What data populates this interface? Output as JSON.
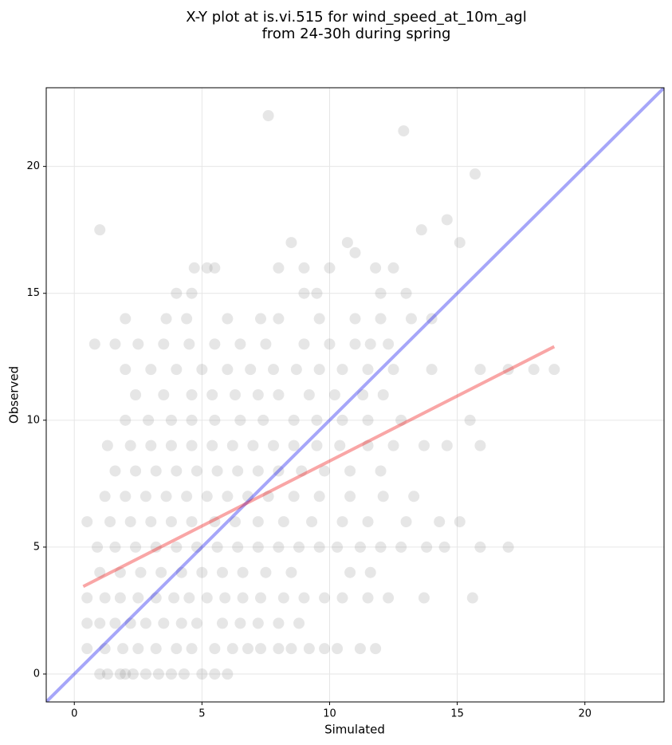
{
  "chart_data": {
    "type": "scatter",
    "title": "X-Y plot at is.vi.515 for wind_speed_at_10m_agl",
    "subtitle": "from 24-30h during spring",
    "xlabel": "Simulated",
    "ylabel": "Observed",
    "xlim": [
      -1.1,
      23.1
    ],
    "ylim": [
      -1.1,
      23.1
    ],
    "xticks": [
      0,
      5,
      10,
      15,
      20
    ],
    "yticks": [
      0,
      5,
      10,
      15,
      20
    ],
    "grid": true,
    "color": "#808080",
    "x": [
      1.0,
      1.3,
      1.8,
      2.0,
      2.3,
      2.8,
      3.3,
      3.8,
      4.3,
      5.0,
      5.5,
      6.0,
      0.5,
      1.2,
      1.9,
      2.5,
      3.2,
      4.0,
      4.6,
      5.5,
      6.2,
      6.8,
      7.3,
      8.0,
      8.5,
      9.2,
      9.8,
      10.3,
      11.2,
      11.8,
      0.5,
      1.0,
      1.6,
      2.2,
      2.8,
      3.5,
      4.2,
      4.8,
      5.8,
      6.5,
      7.2,
      8.0,
      8.8,
      0.5,
      1.2,
      1.8,
      2.5,
      3.2,
      3.9,
      4.5,
      5.2,
      5.9,
      6.6,
      7.3,
      8.2,
      9.0,
      9.8,
      10.5,
      11.5,
      12.3,
      13.7,
      15.6,
      1.0,
      1.8,
      2.6,
      3.4,
      4.2,
      5.0,
      5.8,
      6.6,
      7.5,
      8.5,
      10.8,
      11.6,
      0.9,
      1.6,
      2.4,
      3.2,
      4.0,
      4.8,
      5.6,
      6.4,
      7.2,
      8.0,
      8.8,
      9.6,
      10.3,
      11.2,
      12.0,
      12.8,
      13.8,
      14.5,
      15.9,
      17.0,
      0.5,
      1.4,
      2.2,
      3.0,
      3.8,
      4.6,
      5.5,
      6.3,
      7.2,
      8.2,
      9.3,
      10.5,
      11.5,
      13.0,
      14.3,
      15.1,
      1.2,
      2.0,
      2.8,
      3.6,
      4.4,
      5.2,
      6.0,
      6.8,
      7.6,
      8.6,
      9.6,
      10.8,
      12.1,
      13.3,
      1.6,
      2.4,
      3.2,
      4.0,
      4.8,
      5.6,
      6.4,
      7.2,
      8.0,
      8.9,
      9.8,
      10.8,
      12.0,
      1.3,
      2.2,
      3.0,
      3.8,
      4.6,
      5.4,
      6.2,
      7.0,
      7.8,
      8.6,
      9.5,
      10.4,
      11.5,
      12.5,
      13.7,
      14.6,
      15.9,
      2.0,
      2.9,
      3.8,
      4.6,
      5.5,
      6.5,
      7.4,
      8.6,
      9.5,
      10.5,
      11.5,
      12.8,
      15.5,
      2.4,
      3.5,
      4.6,
      5.4,
      6.3,
      7.2,
      8.0,
      9.2,
      10.2,
      11.3,
      12.1,
      2.0,
      3.0,
      4.0,
      5.0,
      6.0,
      6.9,
      7.8,
      8.7,
      9.6,
      10.5,
      11.5,
      12.5,
      14.0,
      15.9,
      17.0,
      18.0,
      18.8,
      0.8,
      1.6,
      2.5,
      3.5,
      4.5,
      5.5,
      6.5,
      7.5,
      9.0,
      10.0,
      11.0,
      11.6,
      12.3,
      2.0,
      3.6,
      4.4,
      6.0,
      7.3,
      8.0,
      9.6,
      11.0,
      12.0,
      13.2,
      14.0,
      4.0,
      4.6,
      9.0,
      9.5,
      12.0,
      13.0,
      4.7,
      5.2,
      5.5,
      8.0,
      9.0,
      10.0,
      11.8,
      12.5,
      1.0,
      7.6,
      12.9,
      15.7,
      14.6,
      13.6,
      10.7,
      8.5,
      15.1,
      11.0
    ],
    "y": [
      0,
      0,
      0,
      0,
      0,
      0,
      0,
      0,
      0,
      0,
      0,
      0,
      1,
      1,
      1,
      1,
      1,
      1,
      1,
      1,
      1,
      1,
      1,
      1,
      1,
      1,
      1,
      1,
      1,
      1,
      2,
      2,
      2,
      2,
      2,
      2,
      2,
      2,
      2,
      2,
      2,
      2,
      2,
      3,
      3,
      3,
      3,
      3,
      3,
      3,
      3,
      3,
      3,
      3,
      3,
      3,
      3,
      3,
      3,
      3,
      3,
      3,
      4,
      4,
      4,
      4,
      4,
      4,
      4,
      4,
      4,
      4,
      4,
      4,
      5,
      5,
      5,
      5,
      5,
      5,
      5,
      5,
      5,
      5,
      5,
      5,
      5,
      5,
      5,
      5,
      5,
      5,
      5,
      5,
      6,
      6,
      6,
      6,
      6,
      6,
      6,
      6,
      6,
      6,
      6,
      6,
      6,
      6,
      6,
      6,
      7,
      7,
      7,
      7,
      7,
      7,
      7,
      7,
      7,
      7,
      7,
      7,
      7,
      7,
      8,
      8,
      8,
      8,
      8,
      8,
      8,
      8,
      8,
      8,
      8,
      8,
      8,
      9,
      9,
      9,
      9,
      9,
      9,
      9,
      9,
      9,
      9,
      9,
      9,
      9,
      9,
      9,
      9,
      9,
      10,
      10,
      10,
      10,
      10,
      10,
      10,
      10,
      10,
      10,
      10,
      10,
      10,
      11,
      11,
      11,
      11,
      11,
      11,
      11,
      11,
      11,
      11,
      11,
      12,
      12,
      12,
      12,
      12,
      12,
      12,
      12,
      12,
      12,
      12,
      12,
      12,
      12,
      12,
      12,
      12,
      13,
      13,
      13,
      13,
      13,
      13,
      13,
      13,
      13,
      13,
      13,
      13,
      13,
      14,
      14,
      14,
      14,
      14,
      14,
      14,
      14,
      14,
      14,
      14,
      15,
      15,
      15,
      15,
      15,
      15,
      16,
      16,
      16,
      16,
      16,
      16,
      16,
      16,
      17.5,
      22,
      21.4,
      19.7,
      17.9,
      17.5,
      17,
      17,
      17,
      16.6
    ],
    "lines": [
      {
        "color": "#0000ee",
        "x": [
          -1.1,
          23.1
        ],
        "y": [
          -1.1,
          23.1
        ]
      },
      {
        "color": "#ee0000",
        "x": [
          0.35,
          18.8
        ],
        "y": [
          3.45,
          12.9
        ]
      }
    ]
  }
}
